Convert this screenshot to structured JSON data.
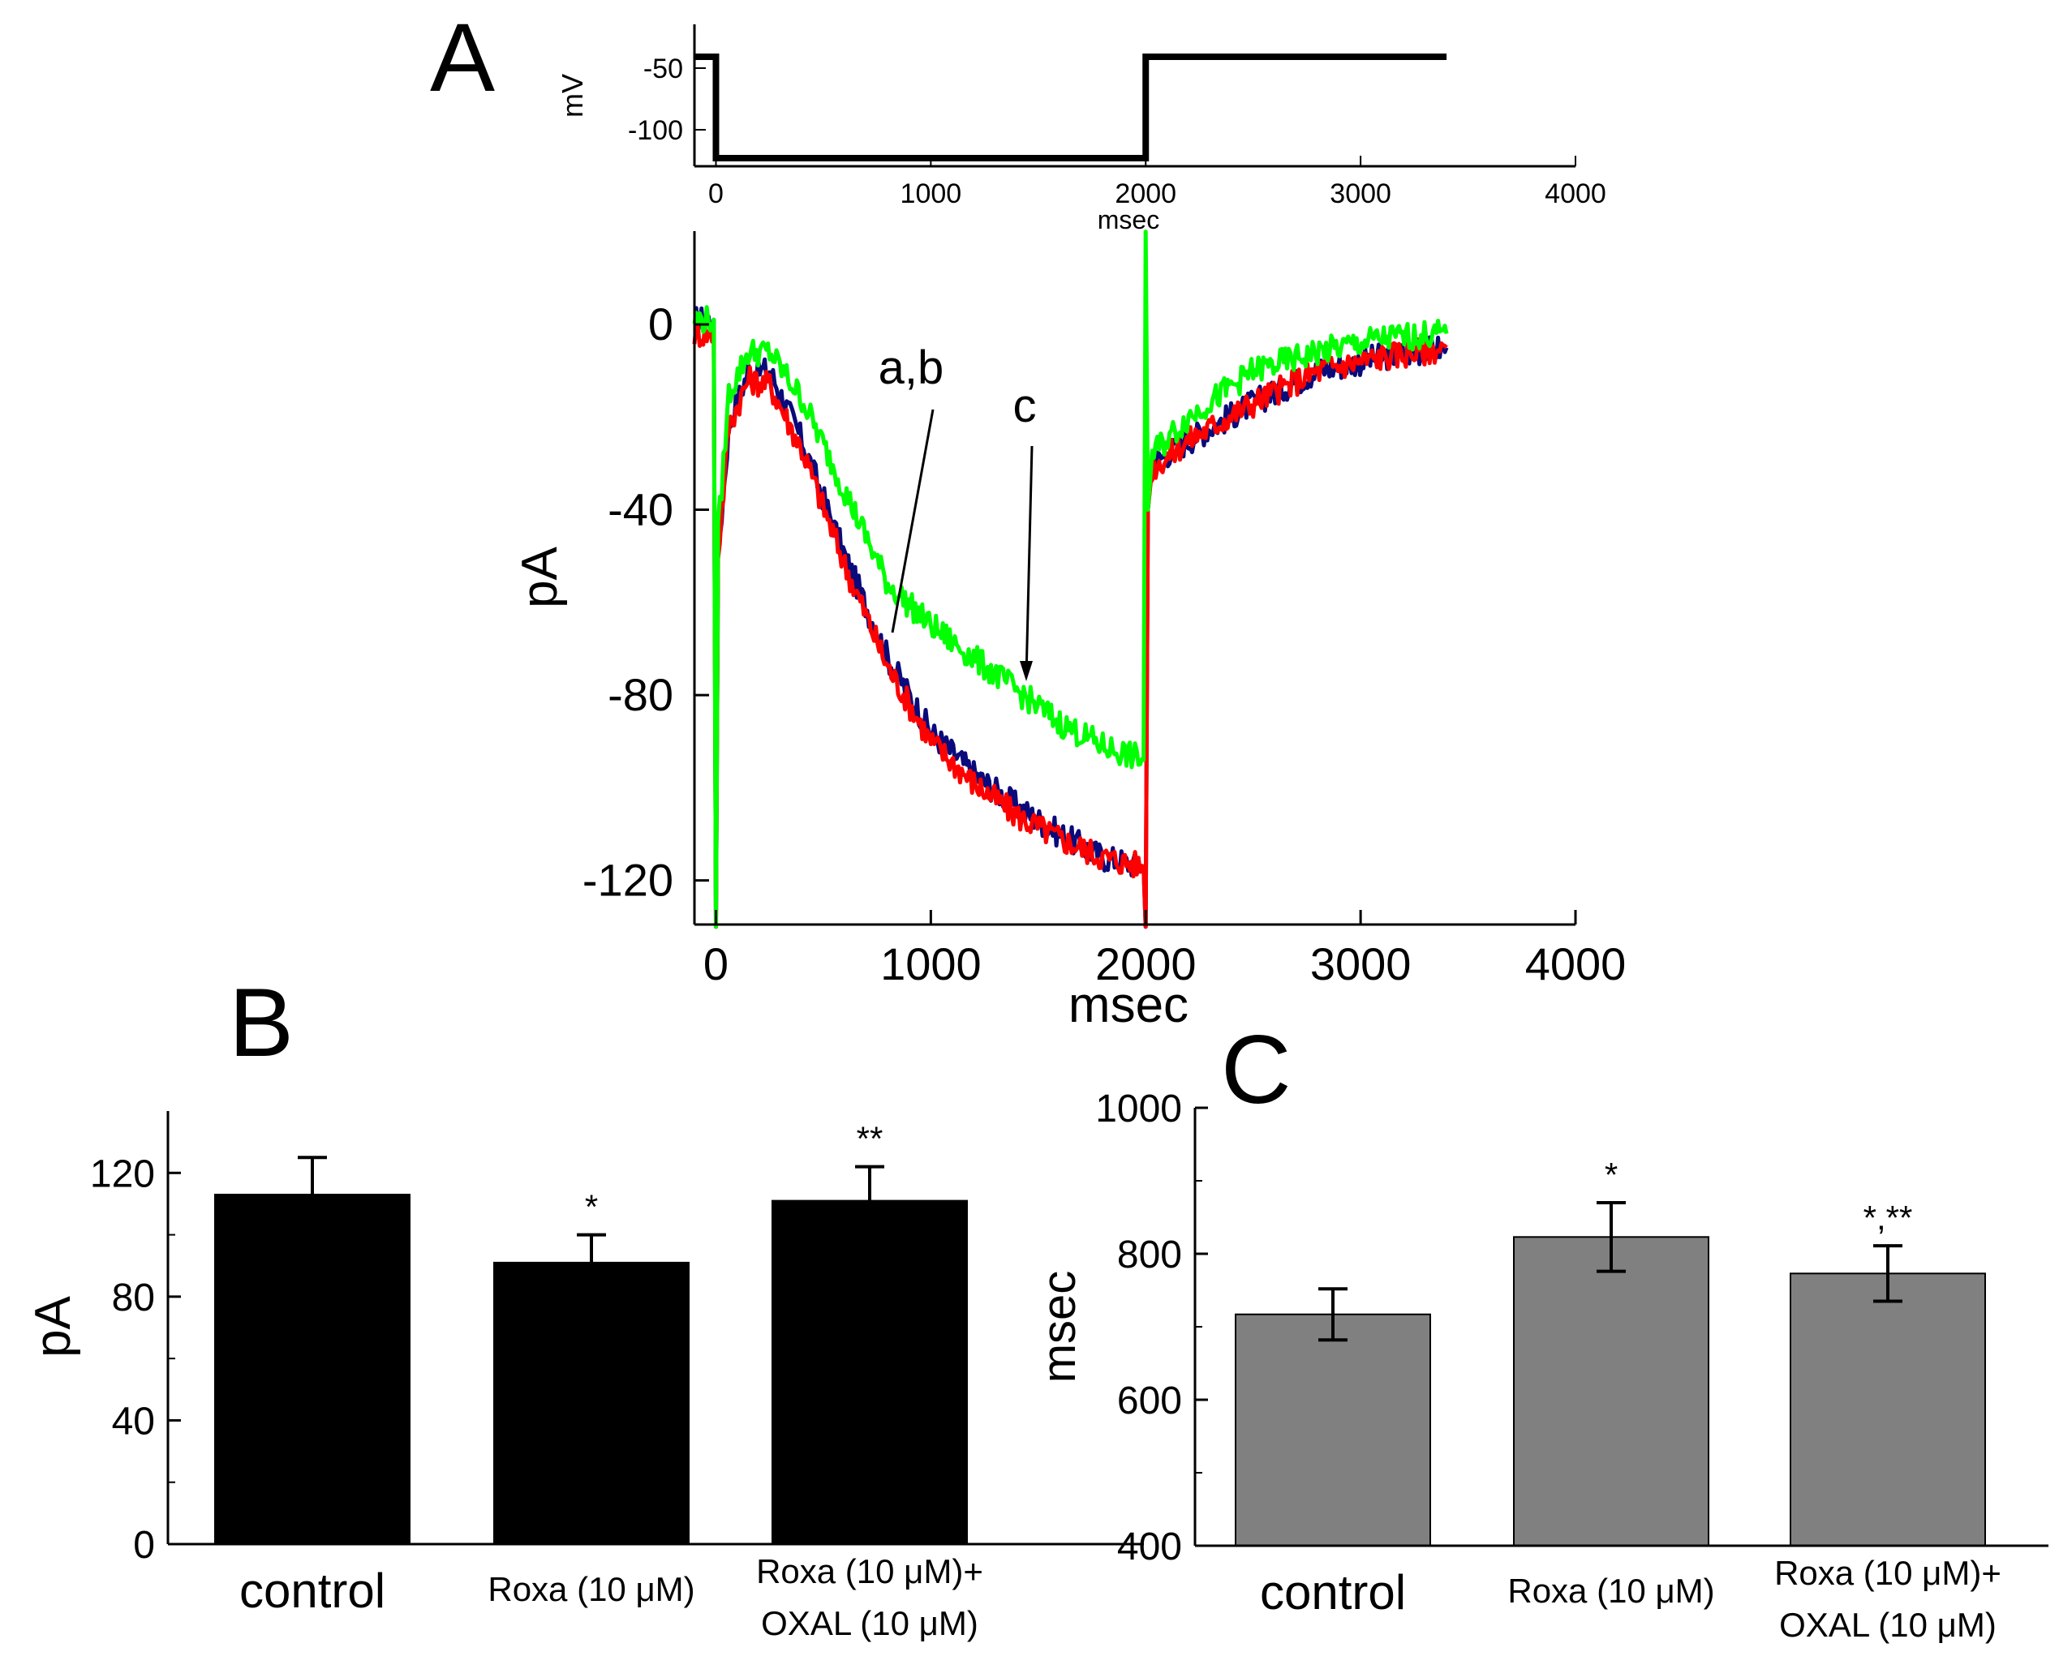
{
  "panel_labels": {
    "a": "A",
    "b": "B",
    "c": "C"
  },
  "colors": {
    "axis": "#000000",
    "bar_b": "#000000",
    "bar_c": "#808080",
    "trace_a": "#0a0a7a",
    "trace_b": "#ff0000",
    "trace_c": "#00ff00"
  },
  "chart_data": [
    {
      "id": "A-protocol",
      "type": "line",
      "ylabel": "mV",
      "xlabel": "msec",
      "xlim": [
        -100,
        4000
      ],
      "xticks": [
        "0",
        "1000",
        "2000",
        "3000",
        "4000"
      ],
      "yticks": [
        "-50",
        "-100"
      ],
      "series": [
        {
          "x": [
            -100,
            0,
            0,
            2000,
            2000,
            3400
          ],
          "y": [
            -40,
            -40,
            -120,
            -120,
            -40,
            -40
          ]
        }
      ]
    },
    {
      "id": "A-currents",
      "type": "line",
      "ylabel": "pA",
      "xlabel": "msec",
      "xlim": [
        -100,
        4000
      ],
      "ylim": [
        -130,
        20
      ],
      "xticks": [
        "0",
        "1000",
        "2000",
        "3000",
        "4000"
      ],
      "yticks": [
        "0",
        "-40",
        "-80",
        "-120"
      ],
      "annotations": [
        "a,b",
        "c"
      ],
      "series": [
        {
          "label": "a",
          "color": "#0a0a7a",
          "x": [
            -100,
            -10,
            0,
            10,
            60,
            150,
            250,
            400,
            600,
            800,
            1000,
            1200,
            1400,
            1600,
            1800,
            1990,
            2000,
            2010,
            2030,
            2200,
            2500,
            2800,
            3100,
            3400
          ],
          "y": [
            1,
            1,
            -130,
            -50,
            -22,
            -10,
            -10,
            -25,
            -50,
            -72,
            -88,
            -97,
            -104,
            -110,
            -115,
            -117,
            -130,
            -40,
            -30,
            -25,
            -17,
            -10,
            -7,
            -5
          ]
        },
        {
          "label": "b",
          "color": "#ff0000",
          "x": [
            -100,
            -10,
            0,
            10,
            60,
            150,
            250,
            400,
            600,
            800,
            1000,
            1200,
            1400,
            1600,
            1800,
            1990,
            2000,
            2010,
            2030,
            2200,
            2500,
            2800,
            3100,
            3400
          ],
          "y": [
            -2,
            -2,
            -130,
            -50,
            -22,
            -12,
            -13,
            -27,
            -52,
            -74,
            -90,
            -99,
            -106,
            -111,
            -115,
            -117,
            -130,
            -40,
            -31,
            -25,
            -17,
            -10,
            -7,
            -5
          ]
        },
        {
          "label": "c",
          "color": "#00ff00",
          "x": [
            -100,
            -10,
            0,
            10,
            60,
            150,
            250,
            400,
            600,
            800,
            1000,
            1200,
            1400,
            1600,
            1800,
            1990,
            2000,
            2010,
            2030,
            2200,
            2500,
            2800,
            3100,
            3400
          ],
          "y": [
            1,
            1,
            -130,
            -45,
            -15,
            -6,
            -6,
            -16,
            -36,
            -56,
            -65,
            -72,
            -79,
            -86,
            -91,
            -94,
            20,
            -40,
            -28,
            -20,
            -10,
            -6,
            -3,
            -2
          ]
        }
      ]
    },
    {
      "id": "B",
      "type": "bar",
      "ylabel": "pA",
      "ylim": [
        0,
        140
      ],
      "yticks": [
        "0",
        "40",
        "80",
        "120"
      ],
      "categories": [
        "control",
        "Roxa (10 μM)",
        "Roxa (10 μM)+|OXAL (10 μM)"
      ],
      "values": [
        113,
        91,
        111
      ],
      "errors": [
        12,
        9,
        11
      ],
      "significance": [
        "",
        "*",
        "**"
      ]
    },
    {
      "id": "C",
      "type": "bar",
      "ylabel": "msec",
      "ylim": [
        400,
        1000
      ],
      "yticks": [
        "400",
        "600",
        "800",
        "1000"
      ],
      "categories": [
        "control",
        "Roxa (10 μM)",
        "Roxa (10 μM)+|OXAL (10 μM)"
      ],
      "values": [
        717,
        823,
        773
      ],
      "errors": [
        35,
        47,
        38
      ],
      "significance": [
        "",
        "*",
        "*,**"
      ]
    }
  ]
}
